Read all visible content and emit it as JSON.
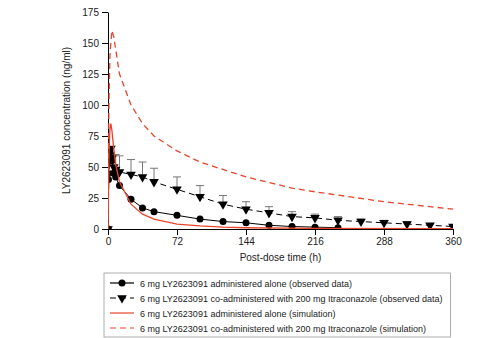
{
  "chart_data": {
    "type": "line",
    "x_label": "Post-dose time (h)",
    "y_label": "LY2623091 concentration (ng/ml)",
    "xlim": [
      0,
      360
    ],
    "xticks": [
      0,
      72,
      144,
      216,
      288,
      360
    ],
    "ylim": [
      0,
      175
    ],
    "yticks": [
      0,
      25,
      50,
      75,
      100,
      125,
      150,
      175
    ],
    "grid": false,
    "legend": "bottom",
    "series": [
      {
        "name": "6 mg LY2623091 administered alone (observed data)",
        "color": "#000000",
        "marker": "circle",
        "line_style": "solid",
        "x": [
          0,
          0.5,
          1,
          2,
          3,
          4,
          6,
          8,
          12,
          24,
          36,
          48,
          72,
          96,
          120,
          144,
          168,
          192,
          216,
          240
        ],
        "values": [
          0,
          40,
          55,
          63,
          60,
          55,
          45,
          42,
          35,
          24,
          17,
          14,
          11,
          8,
          6,
          5,
          3,
          2,
          1.5,
          1
        ]
      },
      {
        "name": "6 mg LY2623091 co-administered with 200 mg Itraconazole (observed data)",
        "color": "#000000",
        "marker": "triangle-down",
        "line_style": "dashed",
        "x": [
          0,
          1,
          2,
          3,
          4,
          6,
          8,
          12,
          24,
          36,
          48,
          72,
          96,
          120,
          144,
          168,
          192,
          216,
          240,
          264,
          288,
          312,
          336,
          360
        ],
        "values": [
          0,
          45,
          58,
          65,
          57,
          50,
          48,
          46,
          44,
          42,
          38,
          32,
          26,
          20,
          16,
          13,
          10,
          9,
          7,
          6,
          5,
          4,
          3,
          2
        ],
        "errors": [
          null,
          null,
          null,
          null,
          null,
          null,
          12,
          13,
          12,
          12,
          11,
          10,
          9,
          7,
          6,
          5,
          4,
          3,
          3,
          2,
          2,
          2,
          1,
          1
        ]
      },
      {
        "name": "6 mg LY2623091 administered alone (simulation)",
        "color": "#e8452c",
        "marker": "none",
        "line_style": "solid",
        "x": [
          0,
          1,
          2,
          3,
          4,
          6,
          8,
          12,
          24,
          36,
          48,
          72,
          96,
          120,
          144,
          216,
          360
        ],
        "values": [
          0,
          60,
          80,
          85,
          80,
          65,
          52,
          38,
          20,
          12,
          8,
          4,
          2.5,
          1.5,
          1,
          0.5,
          0.2
        ]
      },
      {
        "name": "6 mg LY2623091 co-administered with 200 mg Itraconazole (simulation)",
        "color": "#e8452c",
        "marker": "none",
        "line_style": "dashed",
        "x": [
          0,
          1,
          2,
          4,
          6,
          8,
          12,
          24,
          36,
          48,
          72,
          96,
          144,
          192,
          216,
          288,
          360
        ],
        "values": [
          0,
          100,
          140,
          160,
          155,
          145,
          125,
          100,
          85,
          75,
          63,
          54,
          42,
          33,
          30,
          22,
          16
        ]
      }
    ]
  }
}
